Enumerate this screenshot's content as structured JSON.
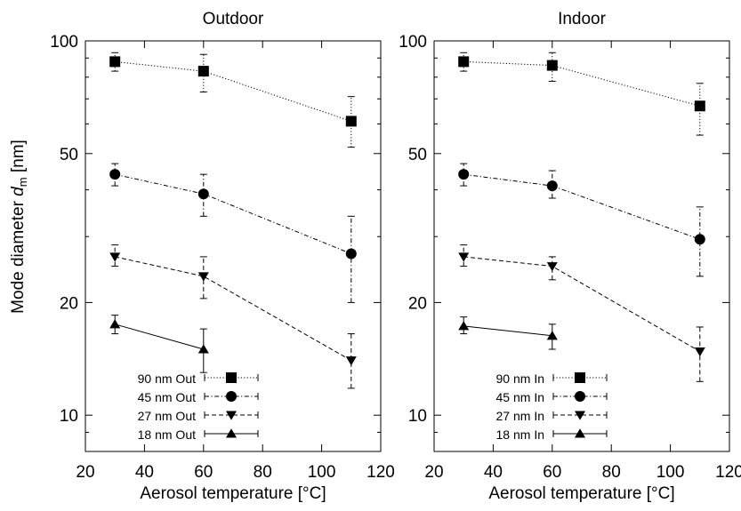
{
  "figure": {
    "ylabel_prefix": "Mode diameter ",
    "ylabel_var": "d",
    "ylabel_sub": "m",
    "ylabel_unit": " [nm]"
  },
  "chart_data": [
    {
      "type": "line",
      "title": "Outdoor",
      "xlabel": "Aerosol temperature [°C]",
      "ylabel": "Mode diameter d_m [nm]",
      "xlim": [
        20,
        120
      ],
      "ylim": [
        8,
        100
      ],
      "yscale": "log",
      "xticks": [
        20,
        40,
        60,
        80,
        100,
        120
      ],
      "yticks": [
        10,
        20,
        50,
        100
      ],
      "grid": false,
      "legend_position": "bottom-left",
      "series": [
        {
          "name": "90 nm Out",
          "marker": "square",
          "dash": "dotted",
          "x": [
            30,
            60,
            110
          ],
          "y": [
            88,
            83,
            61
          ],
          "err_low": [
            83,
            73,
            52
          ],
          "err_high": [
            93,
            92,
            71
          ]
        },
        {
          "name": "45 nm Out",
          "marker": "circle",
          "dash": "dash-dot",
          "x": [
            30,
            60,
            110
          ],
          "y": [
            44,
            39,
            27
          ],
          "err_low": [
            41,
            34,
            20
          ],
          "err_high": [
            47,
            44,
            34
          ]
        },
        {
          "name": "27 nm Out",
          "marker": "triangle-down",
          "dash": "dashed",
          "x": [
            30,
            60,
            110
          ],
          "y": [
            26.5,
            23.5,
            14
          ],
          "err_low": [
            25,
            20.5,
            11.8
          ],
          "err_high": [
            28.5,
            26.5,
            16.5
          ]
        },
        {
          "name": "18 nm Out",
          "marker": "triangle-up",
          "dash": "solid",
          "x": [
            30,
            60
          ],
          "y": [
            17.5,
            15
          ],
          "err_low": [
            16.5,
            13
          ],
          "err_high": [
            18.5,
            17
          ]
        }
      ]
    },
    {
      "type": "line",
      "title": "Indoor",
      "xlabel": "Aerosol temperature [°C]",
      "ylabel": "Mode diameter d_m [nm]",
      "xlim": [
        20,
        120
      ],
      "ylim": [
        8,
        100
      ],
      "yscale": "log",
      "xticks": [
        20,
        40,
        60,
        80,
        100,
        120
      ],
      "yticks": [
        10,
        20,
        50,
        100
      ],
      "grid": false,
      "legend_position": "bottom-left",
      "series": [
        {
          "name": "90 nm In",
          "marker": "square",
          "dash": "dotted",
          "x": [
            30,
            60,
            110
          ],
          "y": [
            88,
            86,
            67
          ],
          "err_low": [
            83,
            78,
            56
          ],
          "err_high": [
            93,
            93,
            77
          ]
        },
        {
          "name": "45 nm In",
          "marker": "circle",
          "dash": "dash-dot",
          "x": [
            30,
            60,
            110
          ],
          "y": [
            44,
            41,
            29.5
          ],
          "err_low": [
            41,
            38,
            23.5
          ],
          "err_high": [
            47,
            45,
            36
          ]
        },
        {
          "name": "27 nm In",
          "marker": "triangle-down",
          "dash": "dashed",
          "x": [
            30,
            60,
            110
          ],
          "y": [
            26.5,
            25,
            14.8
          ],
          "err_low": [
            25,
            23,
            12.3
          ],
          "err_high": [
            28.5,
            26.5,
            17.2
          ]
        },
        {
          "name": "18 nm In",
          "marker": "triangle-up",
          "dash": "solid",
          "x": [
            30,
            60
          ],
          "y": [
            17.3,
            16.3
          ],
          "err_low": [
            16.5,
            15
          ],
          "err_high": [
            18.3,
            17.5
          ]
        }
      ]
    }
  ]
}
